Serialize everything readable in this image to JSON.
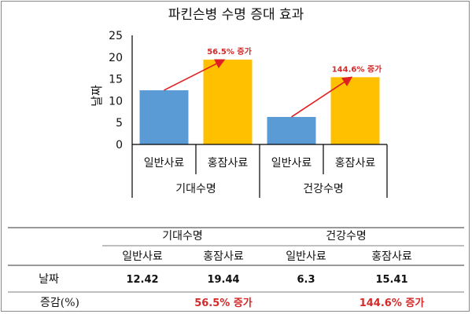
{
  "chart_data": {
    "type": "bar",
    "title": "파킨슨병 수명 증대 효과",
    "ylabel": "날짜",
    "xlabel": "",
    "ylim": [
      0,
      25
    ],
    "yticks": [
      0,
      5,
      10,
      15,
      20,
      25
    ],
    "grid": false,
    "groups": [
      {
        "label": "기대수명",
        "categories": [
          "일반사료",
          "홍잠사료"
        ],
        "values": [
          12.42,
          19.44
        ],
        "colors": [
          "#5b9bd5",
          "#ffc000"
        ],
        "annotation": "56.5% 증가"
      },
      {
        "label": "건강수명",
        "categories": [
          "일반사료",
          "홍잠사료"
        ],
        "values": [
          6.3,
          15.41
        ],
        "colors": [
          "#5b9bd5",
          "#ffc000"
        ],
        "annotation": "144.6% 증가"
      }
    ]
  },
  "table": {
    "group_headers": [
      "기대수명",
      "건강수명"
    ],
    "sub_headers": [
      "일반사료",
      "홍잠사료",
      "일반사료",
      "홍잠사료"
    ],
    "rows": [
      {
        "label": "날짜",
        "values": [
          "12.42",
          "19.44",
          "6.3",
          "15.41"
        ]
      },
      {
        "label": "증감(%)",
        "values": [
          "",
          "56.5% 증가",
          "",
          "144.6% 증가"
        ]
      }
    ]
  },
  "colors": {
    "arrow": "#e02020",
    "increase_text": "#d42a2a",
    "axis": "#000000"
  }
}
